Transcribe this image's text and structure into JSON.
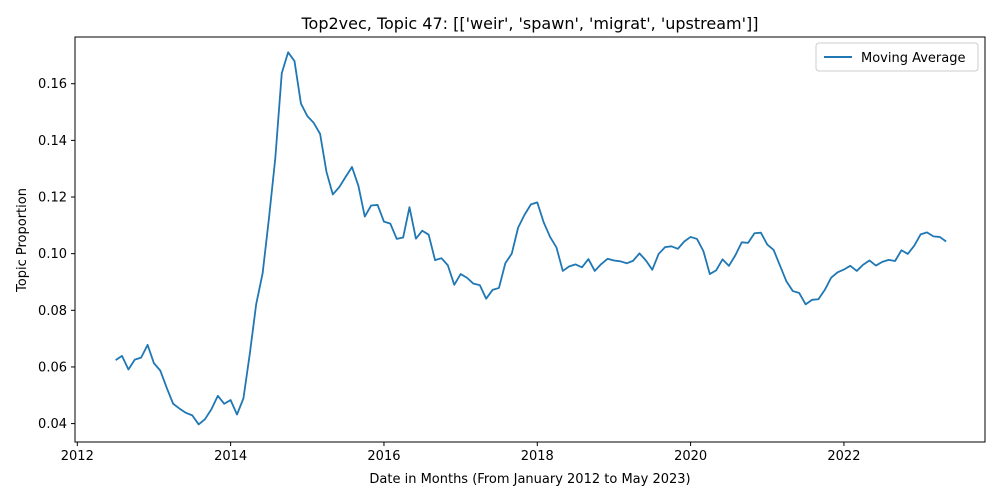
{
  "chart_data": {
    "type": "line",
    "title": "Top2vec, Topic 47: [['weir', 'spawn', 'migrat', 'upstream']]",
    "xlabel": "Date in Months (From January 2012 to May 2023)",
    "ylabel": "Topic Proportion",
    "xlim": [
      2011.97,
      2023.84
    ],
    "ylim": [
      0.0335,
      0.1765
    ],
    "x_ticks": [
      2012,
      2014,
      2016,
      2018,
      2020,
      2022
    ],
    "y_ticks": [
      0.04,
      0.06,
      0.08,
      0.1,
      0.12,
      0.14,
      0.16
    ],
    "y_tick_labels": [
      "0.04",
      "0.06",
      "0.08",
      "0.10",
      "0.12",
      "0.14",
      "0.16"
    ],
    "grid": false,
    "legend_position": "top-right",
    "series": [
      {
        "name": "Moving Average",
        "color": "#1f77b4",
        "x": [
          2012.5,
          2012.583,
          2012.667,
          2012.75,
          2012.833,
          2012.917,
          2013.0,
          2013.083,
          2013.167,
          2013.25,
          2013.333,
          2013.417,
          2013.5,
          2013.583,
          2013.667,
          2013.75,
          2013.833,
          2013.917,
          2014.0,
          2014.083,
          2014.167,
          2014.25,
          2014.333,
          2014.417,
          2014.5,
          2014.583,
          2014.667,
          2014.75,
          2014.833,
          2014.917,
          2015.0,
          2015.083,
          2015.167,
          2015.25,
          2015.333,
          2015.417,
          2015.5,
          2015.583,
          2015.667,
          2015.75,
          2015.833,
          2015.917,
          2016.0,
          2016.083,
          2016.167,
          2016.25,
          2016.333,
          2016.417,
          2016.5,
          2016.583,
          2016.667,
          2016.75,
          2016.833,
          2016.917,
          2017.0,
          2017.083,
          2017.167,
          2017.25,
          2017.333,
          2017.417,
          2017.5,
          2017.583,
          2017.667,
          2017.75,
          2017.833,
          2017.917,
          2018.0,
          2018.083,
          2018.167,
          2018.25,
          2018.333,
          2018.417,
          2018.5,
          2018.583,
          2018.667,
          2018.75,
          2018.833,
          2018.917,
          2019.0,
          2019.083,
          2019.167,
          2019.25,
          2019.333,
          2019.417,
          2019.5,
          2019.583,
          2019.667,
          2019.75,
          2019.833,
          2019.917,
          2020.0,
          2020.083,
          2020.167,
          2020.25,
          2020.333,
          2020.417,
          2020.5,
          2020.583,
          2020.667,
          2020.75,
          2020.833,
          2020.917,
          2021.0,
          2021.083,
          2021.167,
          2021.25,
          2021.333,
          2021.417,
          2021.5,
          2021.583,
          2021.667,
          2021.75,
          2021.833,
          2021.917,
          2022.0,
          2022.083,
          2022.167,
          2022.25,
          2022.333,
          2022.417,
          2022.5,
          2022.583,
          2022.667,
          2022.75,
          2022.833,
          2022.917,
          2023.0,
          2023.083,
          2023.167,
          2023.25,
          2023.333
        ],
        "y": [
          0.0624,
          0.0639,
          0.0591,
          0.0626,
          0.0633,
          0.0678,
          0.0613,
          0.0587,
          0.0526,
          0.047,
          0.0453,
          0.0438,
          0.0429,
          0.0397,
          0.0416,
          0.0451,
          0.0498,
          0.047,
          0.0483,
          0.0432,
          0.0489,
          0.0646,
          0.0821,
          0.093,
          0.1125,
          0.1338,
          0.1637,
          0.1711,
          0.168,
          0.153,
          0.1486,
          0.1462,
          0.1423,
          0.1289,
          0.1209,
          0.1235,
          0.1271,
          0.1306,
          0.1239,
          0.1131,
          0.117,
          0.1172,
          0.1113,
          0.1106,
          0.1052,
          0.1057,
          0.1164,
          0.1053,
          0.1081,
          0.1067,
          0.0977,
          0.0984,
          0.0959,
          0.089,
          0.0928,
          0.0915,
          0.0894,
          0.0889,
          0.0841,
          0.0872,
          0.0879,
          0.0966,
          0.1,
          0.1092,
          0.1137,
          0.1174,
          0.1181,
          0.1111,
          0.1059,
          0.1022,
          0.0939,
          0.0955,
          0.0962,
          0.0952,
          0.0981,
          0.0939,
          0.0963,
          0.0982,
          0.0976,
          0.0973,
          0.0966,
          0.0975,
          0.1001,
          0.0976,
          0.0943,
          0.0999,
          0.1023,
          0.1026,
          0.1017,
          0.1043,
          0.1059,
          0.1052,
          0.1009,
          0.0928,
          0.0941,
          0.098,
          0.0957,
          0.0994,
          0.104,
          0.1038,
          0.1072,
          0.1074,
          0.1032,
          0.1013,
          0.0957,
          0.0902,
          0.0868,
          0.0861,
          0.0821,
          0.0837,
          0.0839,
          0.0872,
          0.0915,
          0.0934,
          0.0944,
          0.0957,
          0.0939,
          0.0961,
          0.0976,
          0.0958,
          0.0971,
          0.0978,
          0.0974,
          0.1012,
          0.0999,
          0.1028,
          0.1068,
          0.1075,
          0.1061,
          0.1059,
          0.1043
        ]
      }
    ]
  }
}
